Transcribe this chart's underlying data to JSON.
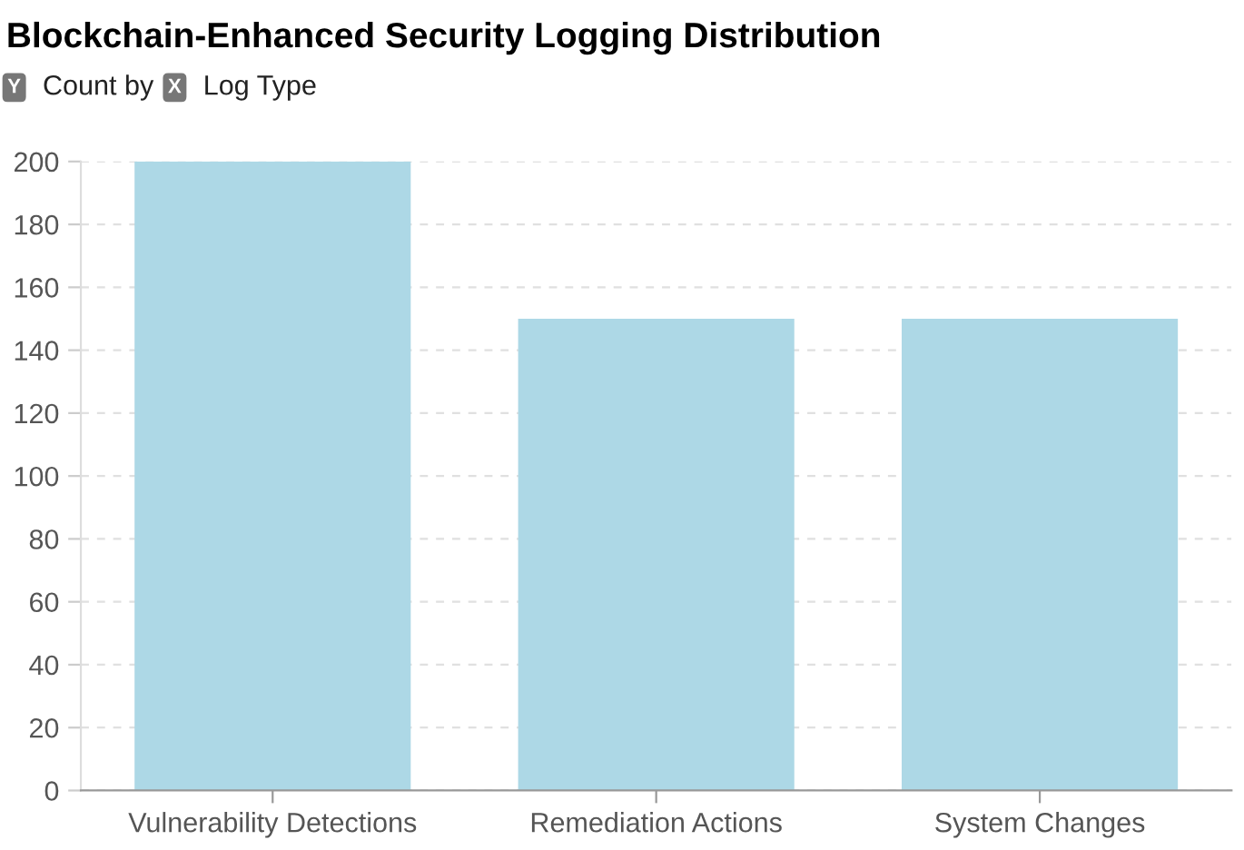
{
  "chart_data": {
    "type": "bar",
    "title": "Blockchain-Enhanced Security Logging Distribution",
    "annotations": [
      "Y",
      "Count by",
      "X",
      "Log Type"
    ],
    "categories": [
      "Vulnerability Detections",
      "Remediation Actions",
      "System Changes"
    ],
    "values": [
      200,
      150,
      150
    ],
    "color": "#add8e6",
    "ylim": [
      0,
      200
    ],
    "yticks": [
      0,
      20,
      40,
      60,
      80,
      100,
      120,
      140,
      160,
      180,
      200
    ],
    "grid": "y"
  }
}
